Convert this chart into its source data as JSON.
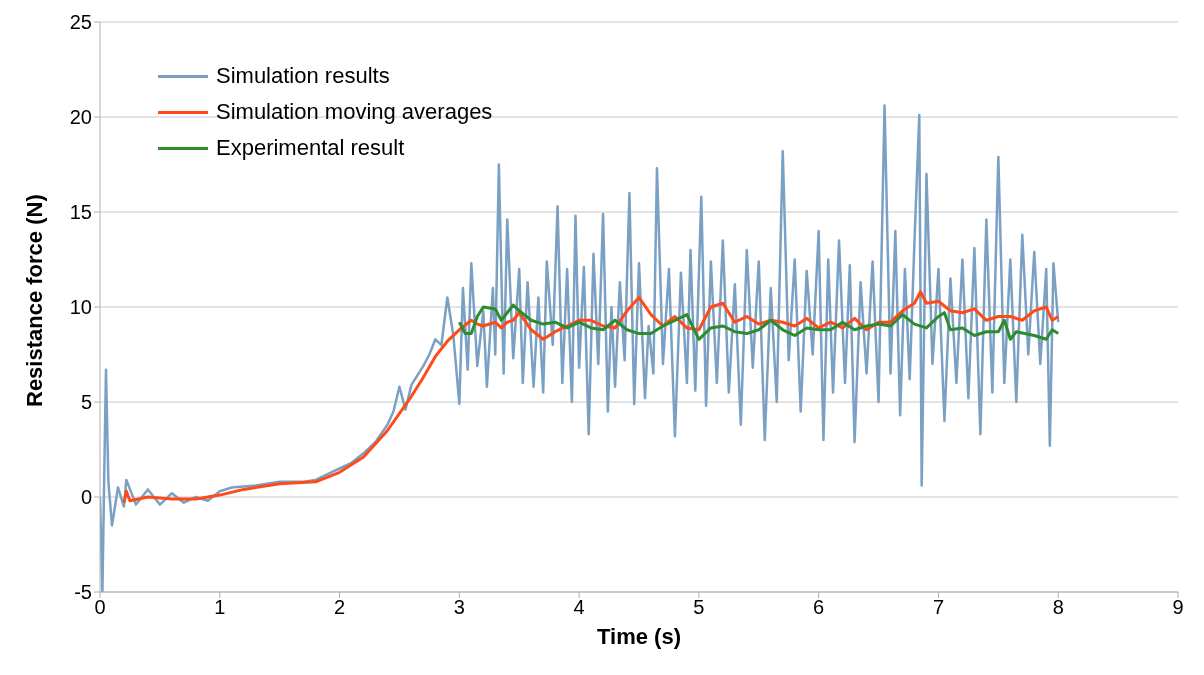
{
  "chart_data": {
    "type": "line",
    "xlabel": "Time (s)",
    "ylabel": "Resistance force (N)",
    "xlim": [
      0,
      9
    ],
    "xticks": [
      0,
      1,
      2,
      3,
      4,
      5,
      6,
      7,
      8,
      9
    ],
    "ylim": [
      -5,
      25
    ],
    "yticks": [
      -5,
      0,
      5,
      10,
      15,
      20,
      25
    ],
    "grid": "y",
    "legend": "top left",
    "marker": "none",
    "line_style": "solid",
    "series": [
      {
        "name": "Simulation results",
        "color": "#7aa0c4",
        "x": [
          0,
          0.02,
          0.04,
          0.05,
          0.07,
          0.1,
          0.15,
          0.2,
          0.22,
          0.3,
          0.4,
          0.5,
          0.6,
          0.7,
          0.8,
          0.9,
          1.0,
          1.1,
          1.3,
          1.5,
          1.7,
          1.8,
          1.9,
          2.0,
          2.1,
          2.2,
          2.3,
          2.4,
          2.45,
          2.5,
          2.55,
          2.6,
          2.7,
          2.75,
          2.8,
          2.85,
          2.9,
          2.95,
          3.0,
          3.03,
          3.07,
          3.1,
          3.15,
          3.2,
          3.23,
          3.28,
          3.3,
          3.33,
          3.37,
          3.4,
          3.45,
          3.5,
          3.53,
          3.57,
          3.62,
          3.66,
          3.7,
          3.73,
          3.78,
          3.82,
          3.86,
          3.9,
          3.94,
          3.97,
          4.0,
          4.04,
          4.08,
          4.12,
          4.16,
          4.2,
          4.24,
          4.27,
          4.3,
          4.34,
          4.38,
          4.42,
          4.46,
          4.5,
          4.55,
          4.58,
          4.62,
          4.65,
          4.7,
          4.75,
          4.8,
          4.85,
          4.9,
          4.93,
          4.97,
          5.02,
          5.06,
          5.1,
          5.15,
          5.2,
          5.25,
          5.3,
          5.35,
          5.4,
          5.45,
          5.5,
          5.55,
          5.6,
          5.65,
          5.7,
          5.75,
          5.8,
          5.85,
          5.9,
          5.95,
          6.0,
          6.04,
          6.08,
          6.12,
          6.17,
          6.22,
          6.26,
          6.3,
          6.35,
          6.4,
          6.45,
          6.5,
          6.55,
          6.6,
          6.64,
          6.68,
          6.72,
          6.76,
          6.8,
          6.84,
          6.86,
          6.9,
          6.95,
          7.0,
          7.05,
          7.1,
          7.15,
          7.2,
          7.25,
          7.3,
          7.35,
          7.4,
          7.45,
          7.5,
          7.55,
          7.6,
          7.65,
          7.7,
          7.75,
          7.8,
          7.85,
          7.9,
          7.93,
          7.96,
          8.0
        ],
        "values": [
          0,
          -5,
          3,
          6.7,
          0.8,
          -1.5,
          0.5,
          -0.5,
          0.9,
          -0.4,
          0.4,
          -0.4,
          0.2,
          -0.3,
          0,
          -0.2,
          0.3,
          0.5,
          0.6,
          0.8,
          0.8,
          0.9,
          1.2,
          1.5,
          1.8,
          2.3,
          2.9,
          3.8,
          4.5,
          5.8,
          4.6,
          5.9,
          6.9,
          7.5,
          8.3,
          8.0,
          10.5,
          8.5,
          4.9,
          11.0,
          6.7,
          12.3,
          6.9,
          9.8,
          5.8,
          11.0,
          7.5,
          17.5,
          6.5,
          14.6,
          7.3,
          12.0,
          6.0,
          11.3,
          5.8,
          10.5,
          5.5,
          12.4,
          8.0,
          15.3,
          6.0,
          12.0,
          5.0,
          14.8,
          6.8,
          12.1,
          3.3,
          12.8,
          7.0,
          14.9,
          4.5,
          10.0,
          5.8,
          11.3,
          7.2,
          16.0,
          4.9,
          12.3,
          5.2,
          9.0,
          6.5,
          17.3,
          7.0,
          12.0,
          3.2,
          11.8,
          6.0,
          13.0,
          5.6,
          15.8,
          4.8,
          12.4,
          6.0,
          13.5,
          5.5,
          11.2,
          3.8,
          13.0,
          6.8,
          12.4,
          3.0,
          11.0,
          5.0,
          18.2,
          7.2,
          12.5,
          4.5,
          11.9,
          7.5,
          14.0,
          3.0,
          12.5,
          5.5,
          13.5,
          6.0,
          12.2,
          2.9,
          11.3,
          6.5,
          12.4,
          5.0,
          20.6,
          6.5,
          14.0,
          4.3,
          12.0,
          6.2,
          13.5,
          20.1,
          0.6,
          17.0,
          7.0,
          12.0,
          4.0,
          11.5,
          6.0,
          12.5,
          5.2,
          13.1,
          3.3,
          14.6,
          5.5,
          17.9,
          6.0,
          12.5,
          5.0,
          13.8,
          7.5,
          12.9,
          7.0,
          12.0,
          2.7,
          12.3,
          9.2
        ]
      },
      {
        "name": "Simulation moving averages",
        "color": "#ff4a1a",
        "x": [
          0.2,
          0.22,
          0.25,
          0.4,
          0.6,
          0.8,
          1.0,
          1.2,
          1.5,
          1.8,
          2.0,
          2.2,
          2.4,
          2.6,
          2.7,
          2.8,
          2.9,
          3.0,
          3.1,
          3.15,
          3.2,
          3.3,
          3.35,
          3.4,
          3.45,
          3.5,
          3.6,
          3.7,
          3.8,
          3.9,
          4.0,
          4.1,
          4.2,
          4.3,
          4.4,
          4.5,
          4.6,
          4.7,
          4.8,
          4.9,
          5.0,
          5.1,
          5.2,
          5.3,
          5.4,
          5.5,
          5.6,
          5.7,
          5.8,
          5.9,
          6.0,
          6.1,
          6.2,
          6.3,
          6.4,
          6.5,
          6.6,
          6.7,
          6.8,
          6.85,
          6.9,
          7.0,
          7.1,
          7.2,
          7.3,
          7.4,
          7.5,
          7.6,
          7.7,
          7.8,
          7.9,
          7.95,
          8.0
        ],
        "values": [
          -0.3,
          0.3,
          -0.2,
          0,
          -0.1,
          -0.1,
          0.1,
          0.4,
          0.7,
          0.8,
          1.3,
          2.1,
          3.5,
          5.3,
          6.3,
          7.4,
          8.2,
          8.8,
          9.3,
          9.1,
          9.0,
          9.2,
          8.9,
          9.2,
          9.3,
          9.7,
          8.8,
          8.3,
          8.7,
          9.0,
          9.3,
          9.3,
          9.0,
          8.9,
          9.8,
          10.5,
          9.6,
          9.0,
          9.5,
          8.9,
          8.8,
          10.0,
          10.2,
          9.2,
          9.5,
          9.1,
          9.3,
          9.2,
          9.0,
          9.4,
          8.9,
          9.2,
          8.9,
          9.4,
          8.8,
          9.2,
          9.2,
          9.8,
          10.2,
          10.8,
          10.2,
          10.3,
          9.8,
          9.7,
          9.9,
          9.3,
          9.5,
          9.5,
          9.3,
          9.8,
          10.0,
          9.3,
          9.5
        ]
      },
      {
        "name": "Experimental result",
        "color": "#2e8b2e",
        "x": [
          3.0,
          3.05,
          3.1,
          3.15,
          3.2,
          3.3,
          3.35,
          3.45,
          3.5,
          3.6,
          3.7,
          3.8,
          3.9,
          4.0,
          4.1,
          4.2,
          4.3,
          4.4,
          4.5,
          4.6,
          4.7,
          4.8,
          4.9,
          5.0,
          5.1,
          5.2,
          5.3,
          5.4,
          5.5,
          5.6,
          5.7,
          5.8,
          5.9,
          6.0,
          6.1,
          6.2,
          6.3,
          6.4,
          6.5,
          6.6,
          6.7,
          6.8,
          6.9,
          7.0,
          7.05,
          7.1,
          7.2,
          7.3,
          7.4,
          7.5,
          7.55,
          7.6,
          7.65,
          7.8,
          7.9,
          7.95,
          8.0
        ],
        "values": [
          9.2,
          8.6,
          8.6,
          9.5,
          10.0,
          9.9,
          9.3,
          10.1,
          9.8,
          9.3,
          9.1,
          9.2,
          8.9,
          9.2,
          8.9,
          8.8,
          9.3,
          8.8,
          8.6,
          8.6,
          9.0,
          9.3,
          9.6,
          8.3,
          8.9,
          9.0,
          8.7,
          8.6,
          8.8,
          9.3,
          8.8,
          8.5,
          8.9,
          8.8,
          8.8,
          9.2,
          8.8,
          9.0,
          9.1,
          9.0,
          9.6,
          9.1,
          8.9,
          9.5,
          9.7,
          8.8,
          8.9,
          8.5,
          8.7,
          8.7,
          9.3,
          8.3,
          8.7,
          8.5,
          8.3,
          8.8,
          8.6
        ]
      }
    ]
  }
}
